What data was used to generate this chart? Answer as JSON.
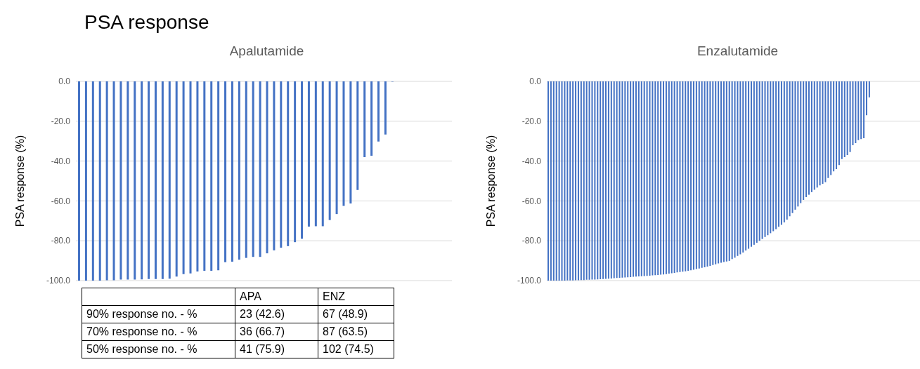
{
  "chart_data": [
    {
      "type": "bar",
      "title": "Apalutamide",
      "ylabel": "PSA response (%)",
      "annotations": [
        "PSA response"
      ],
      "color": "#4472c4",
      "ylim": [
        -100,
        0
      ],
      "yticks": [
        {
          "value": 0,
          "label": "0.0"
        },
        {
          "value": -20,
          "label": "-20.0"
        },
        {
          "value": -40,
          "label": "-40.0"
        },
        {
          "value": -60,
          "label": "-60.0"
        },
        {
          "value": -80,
          "label": "-80.0"
        },
        {
          "value": -100,
          "label": "-100.0"
        }
      ],
      "grid": "y",
      "tick_labels": "y",
      "legend": false,
      "categories": [
        null,
        null,
        null,
        null,
        null,
        null,
        null,
        null,
        null,
        null,
        null,
        null,
        null,
        null,
        null,
        null,
        null,
        null,
        null,
        null,
        null,
        null,
        null,
        null,
        null,
        null,
        null,
        null,
        null,
        null,
        null,
        null,
        null,
        null,
        null,
        null,
        null,
        null,
        null,
        null,
        null,
        null,
        null,
        null,
        null,
        null,
        null,
        null,
        null,
        null,
        null,
        null,
        null,
        null
      ],
      "values": [
        -100,
        -100,
        -100,
        -100,
        -99.8,
        -99.8,
        -99.5,
        -99.5,
        -99.5,
        -99.4,
        -99.2,
        -99.2,
        -99.2,
        -99.0,
        -98.0,
        -96.7,
        -96.4,
        -95.4,
        -95.1,
        -95.1,
        -94.8,
        -90.8,
        -90.5,
        -89.5,
        -88.6,
        -88.1,
        -88.1,
        -86.3,
        -84.8,
        -83.5,
        -82.7,
        -80.7,
        -79.0,
        -72.9,
        -72.7,
        -72.7,
        -69.6,
        -66.6,
        -62.5,
        -61.3,
        -54.5,
        -38.0,
        -37.3,
        -30.2,
        -26.7,
        -0.2,
        null,
        null,
        null,
        null,
        null,
        null,
        null,
        null
      ]
    },
    {
      "type": "bar",
      "title": "Enzalutamide",
      "ylabel": "PSA response (%)",
      "color": "#4472c4",
      "ylim": [
        -100,
        0
      ],
      "yticks": [
        {
          "value": 0,
          "label": "0.0"
        },
        {
          "value": -20,
          "label": "-20.0"
        },
        {
          "value": -40,
          "label": "-40.0"
        },
        {
          "value": -60,
          "label": "-60.0"
        },
        {
          "value": -80,
          "label": "-80.0"
        },
        {
          "value": -100,
          "label": "-100.0"
        }
      ],
      "grid": "y",
      "tick_labels": "y",
      "legend": false,
      "categories": [
        null,
        null,
        null,
        null,
        null,
        null,
        null,
        null,
        null,
        null,
        null,
        null,
        null,
        null,
        null,
        null,
        null,
        null,
        null,
        null,
        null,
        null,
        null,
        null,
        null,
        null,
        null,
        null,
        null,
        null,
        null,
        null,
        null,
        null,
        null,
        null,
        null,
        null,
        null,
        null,
        null,
        null,
        null,
        null,
        null,
        null,
        null,
        null,
        null,
        null,
        null,
        null,
        null,
        null,
        null,
        null,
        null,
        null,
        null,
        null,
        null,
        null,
        null,
        null,
        null,
        null,
        null,
        null,
        null,
        null,
        null,
        null,
        null,
        null,
        null,
        null,
        null,
        null,
        null,
        null,
        null,
        null,
        null,
        null,
        null,
        null,
        null,
        null,
        null,
        null,
        null,
        null,
        null,
        null,
        null,
        null,
        null,
        null,
        null,
        null,
        null,
        null,
        null,
        null,
        null,
        null,
        null,
        null,
        null,
        null,
        null,
        null,
        null,
        null,
        null,
        null,
        null,
        null,
        null,
        null,
        null,
        null,
        null,
        null,
        null,
        null,
        null,
        null,
        null,
        null,
        null,
        null,
        null,
        null,
        null,
        null,
        null
      ],
      "values": [
        -100,
        -100,
        -100,
        -100,
        -100,
        -100,
        -100,
        -99.9,
        -99.9,
        -99.9,
        -99.8,
        -99.8,
        -99.7,
        -99.7,
        -99.6,
        -99.6,
        -99.5,
        -99.5,
        -99.4,
        -99.3,
        -99.2,
        -99.1,
        -99.0,
        -98.9,
        -98.8,
        -98.7,
        -98.6,
        -98.5,
        -98.4,
        -98.3,
        -98.2,
        -98.1,
        -98.0,
        -97.9,
        -97.8,
        -97.7,
        -97.6,
        -97.5,
        -97.4,
        -97.3,
        -97.2,
        -97.0,
        -96.9,
        -96.7,
        -96.5,
        -96.3,
        -96.1,
        -95.9,
        -95.7,
        -95.5,
        -95.3,
        -95.1,
        -94.8,
        -94.5,
        -94.2,
        -93.9,
        -93.6,
        -93.3,
        -93.0,
        -92.6,
        -92.2,
        -91.8,
        -91.4,
        -91.0,
        -90.7,
        -90.4,
        -90.1,
        -89.2,
        -88.5,
        -87.6,
        -86.8,
        -85.9,
        -84.9,
        -84.0,
        -83.0,
        -82.0,
        -81.0,
        -80.0,
        -79.1,
        -78.1,
        -77.2,
        -76.2,
        -75.2,
        -74.2,
        -73.0,
        -72.0,
        -70.8,
        -69.4,
        -67.7,
        -66.1,
        -64.4,
        -62.8,
        -61.1,
        -59.5,
        -58.1,
        -56.9,
        -55.6,
        -54.4,
        -53.3,
        -52.2,
        -51.4,
        -50.6,
        -48.5,
        -47.0,
        -45.2,
        -44.0,
        -42.0,
        -39.0,
        -38.0,
        -37.0,
        -35.5,
        -32.0,
        -31.0,
        -29.5,
        -29.0,
        -28.5,
        -17.0,
        -8.0,
        null,
        null,
        null,
        null,
        null,
        null,
        null,
        null,
        null,
        null,
        null,
        null,
        null,
        null,
        null,
        null,
        null,
        null,
        null
      ]
    },
    {
      "type": "other",
      "annotations": [
        "APA",
        "ENZ",
        "90% response no. - %",
        "23 (42.6)",
        "67 (48.9)",
        "70% response no. - %",
        "36 (66.7)",
        "87 (63.5)",
        "50% response no. - %",
        "41 (75.9)",
        "102 (74.5)"
      ]
    }
  ]
}
